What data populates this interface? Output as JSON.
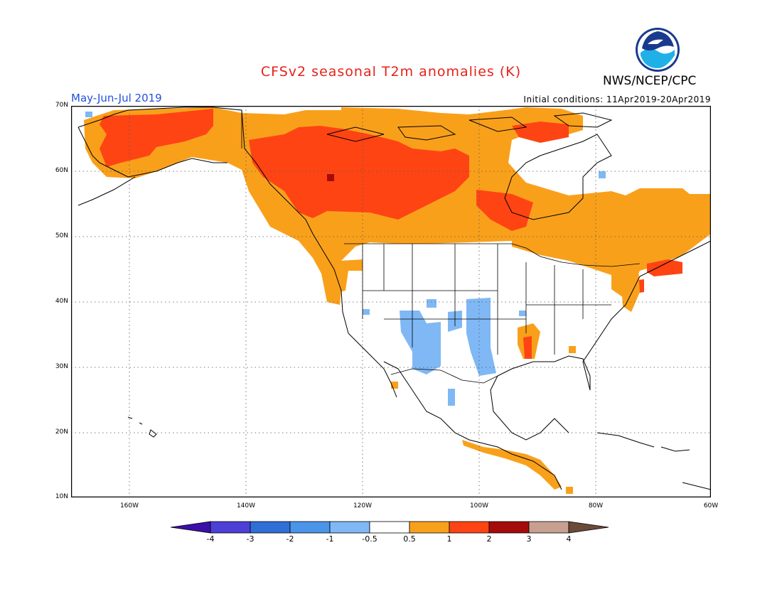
{
  "header": {
    "title": "CFSv2 seasonal T2m anomalies (K)",
    "agency": "NWS/NCEP/CPC",
    "period": "May-Jun-Jul 2019",
    "initial_conditions": "Initial conditions: 11Apr2019-20Apr2019"
  },
  "map": {
    "lat_labels": [
      "70N",
      "60N",
      "50N",
      "40N",
      "30N",
      "20N",
      "10N"
    ],
    "lon_labels": [
      "160W",
      "140W",
      "120W",
      "100W",
      "80W",
      "60W"
    ],
    "lat_range": [
      10,
      70
    ],
    "lon_range": [
      -170,
      -60
    ]
  },
  "colorbar": {
    "labels": [
      "-4",
      "-3",
      "-2",
      "-1",
      "-0.5",
      "0.5",
      "1",
      "2",
      "3",
      "4"
    ],
    "colors": [
      "#3a10a8",
      "#4d40d6",
      "#2f6fd6",
      "#4a95ea",
      "#7fb8f5",
      "#ffffff",
      "#f9a01b",
      "#ff4414",
      "#a50b0b",
      "#c7a091",
      "#6b4a3a"
    ]
  },
  "legend_colors": {
    "cold_light": "#7fb8f5",
    "warm_light": "#f9a01b",
    "warm_mid": "#ff4414",
    "warm_strong": "#a50b0b"
  }
}
